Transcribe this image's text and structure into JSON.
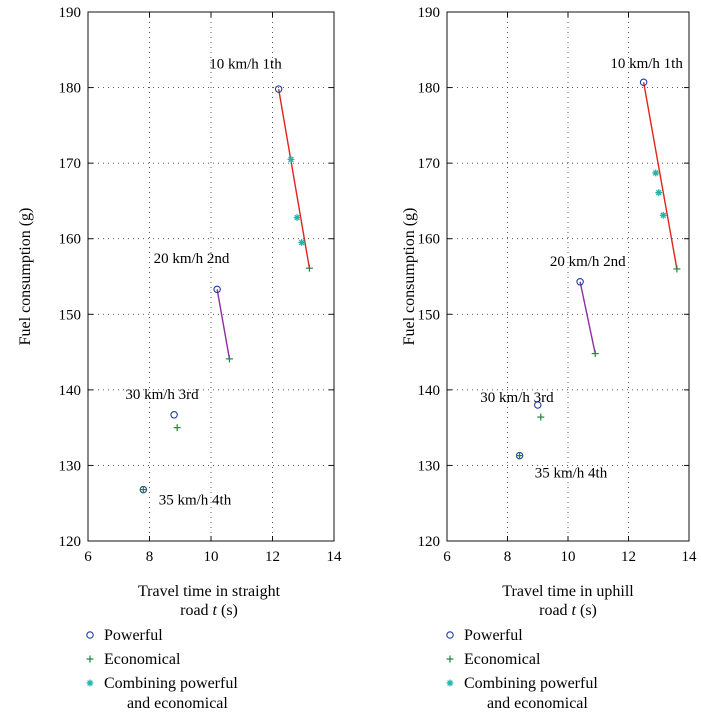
{
  "chart_data": [
    {
      "type": "scatter",
      "ylabel": "Fuel consumption (g)",
      "xlabel_line1": "Travel time in straight",
      "xlabel_line2_prefix": "road ",
      "xlabel_var": "t",
      "xlabel_unit": " (s)",
      "xlim": [
        6,
        14
      ],
      "ylim": [
        120,
        190
      ],
      "xticks": [
        "6",
        "8",
        "10",
        "12",
        "14"
      ],
      "yticks": [
        "120",
        "130",
        "140",
        "150",
        "160",
        "170",
        "180",
        "190"
      ],
      "grid": true,
      "series": [
        {
          "name": "Powerful",
          "marker": "circle",
          "color": "#1f3f9f",
          "points": [
            [
              12.2,
              179.8
            ],
            [
              10.2,
              153.3
            ],
            [
              8.8,
              136.7
            ],
            [
              7.8,
              126.8
            ]
          ]
        },
        {
          "name": "Economical",
          "marker": "plus",
          "color": "#1a8a3a",
          "points": [
            [
              13.2,
              156.1
            ],
            [
              10.6,
              144.1
            ],
            [
              8.9,
              135.0
            ],
            [
              7.8,
              126.8
            ]
          ]
        },
        {
          "name": "Combining powerful and economical",
          "marker": "star",
          "color": "#22b3a8",
          "points": [
            [
              12.6,
              170.5
            ],
            [
              12.8,
              162.8
            ],
            [
              12.95,
              159.5
            ]
          ]
        }
      ],
      "lines": [
        {
          "color": "#e0241c",
          "from": [
            12.2,
            179.8
          ],
          "to": [
            13.2,
            156.1
          ]
        },
        {
          "color": "#8e2ca0",
          "from": [
            10.2,
            153.3
          ],
          "to": [
            10.6,
            144.1
          ]
        }
      ],
      "annotations": [
        {
          "text": "10 km/h 1th",
          "anchor": "end",
          "at": [
            12.3,
            182.5
          ]
        },
        {
          "text": "20 km/h 2nd",
          "anchor": "end",
          "at": [
            10.6,
            156.8
          ]
        },
        {
          "text": "30 km/h 3rd",
          "anchor": "end",
          "at": [
            9.6,
            138.8
          ]
        },
        {
          "text": "35 km/h 4th",
          "anchor": "start",
          "at": [
            8.3,
            124.8
          ]
        }
      ]
    },
    {
      "type": "scatter",
      "ylabel": "Fuel consumption (g)",
      "xlabel_line1": "Travel time in uphill",
      "xlabel_line2_prefix": "road ",
      "xlabel_var": "t",
      "xlabel_unit": " (s)",
      "xlim": [
        6,
        14
      ],
      "ylim": [
        120,
        190
      ],
      "xticks": [
        "6",
        "8",
        "10",
        "12",
        "14"
      ],
      "yticks": [
        "120",
        "130",
        "140",
        "150",
        "160",
        "170",
        "180",
        "190"
      ],
      "grid": true,
      "series": [
        {
          "name": "Powerful",
          "marker": "circle",
          "color": "#1f3f9f",
          "points": [
            [
              12.5,
              180.7
            ],
            [
              10.4,
              154.3
            ],
            [
              9.0,
              138.0
            ],
            [
              8.4,
              131.3
            ]
          ]
        },
        {
          "name": "Economical",
          "marker": "plus",
          "color": "#1a8a3a",
          "points": [
            [
              13.6,
              156.0
            ],
            [
              10.9,
              144.8
            ],
            [
              9.1,
              136.4
            ],
            [
              8.4,
              131.3
            ]
          ]
        },
        {
          "name": "Combining powerful and economical",
          "marker": "star",
          "color": "#22b3a8",
          "points": [
            [
              12.9,
              168.7
            ],
            [
              13.0,
              166.1
            ],
            [
              13.15,
              163.1
            ]
          ]
        }
      ],
      "lines": [
        {
          "color": "#e0241c",
          "from": [
            12.5,
            180.7
          ],
          "to": [
            13.6,
            156.0
          ]
        },
        {
          "color": "#8e2ca0",
          "from": [
            10.4,
            154.3
          ],
          "to": [
            10.9,
            144.8
          ]
        }
      ],
      "annotations": [
        {
          "text": "10 km/h 1th",
          "anchor": "start",
          "at": [
            11.4,
            182.6
          ]
        },
        {
          "text": "20 km/h 2nd",
          "anchor": "start",
          "at": [
            9.4,
            156.4
          ]
        },
        {
          "text": "30 km/h 3rd",
          "anchor": "start",
          "at": [
            7.1,
            138.4
          ]
        },
        {
          "text": "35 km/h 4th",
          "anchor": "start",
          "at": [
            8.9,
            128.4
          ]
        }
      ]
    }
  ],
  "legend": [
    {
      "marker": "circle",
      "color": "#1f3f9f",
      "lines": [
        "Powerful"
      ]
    },
    {
      "marker": "plus",
      "color": "#1a8a3a",
      "lines": [
        "Economical"
      ]
    },
    {
      "marker": "star",
      "color": "#22b3a8",
      "lines": [
        "Combining powerful",
        "and economical"
      ]
    }
  ]
}
